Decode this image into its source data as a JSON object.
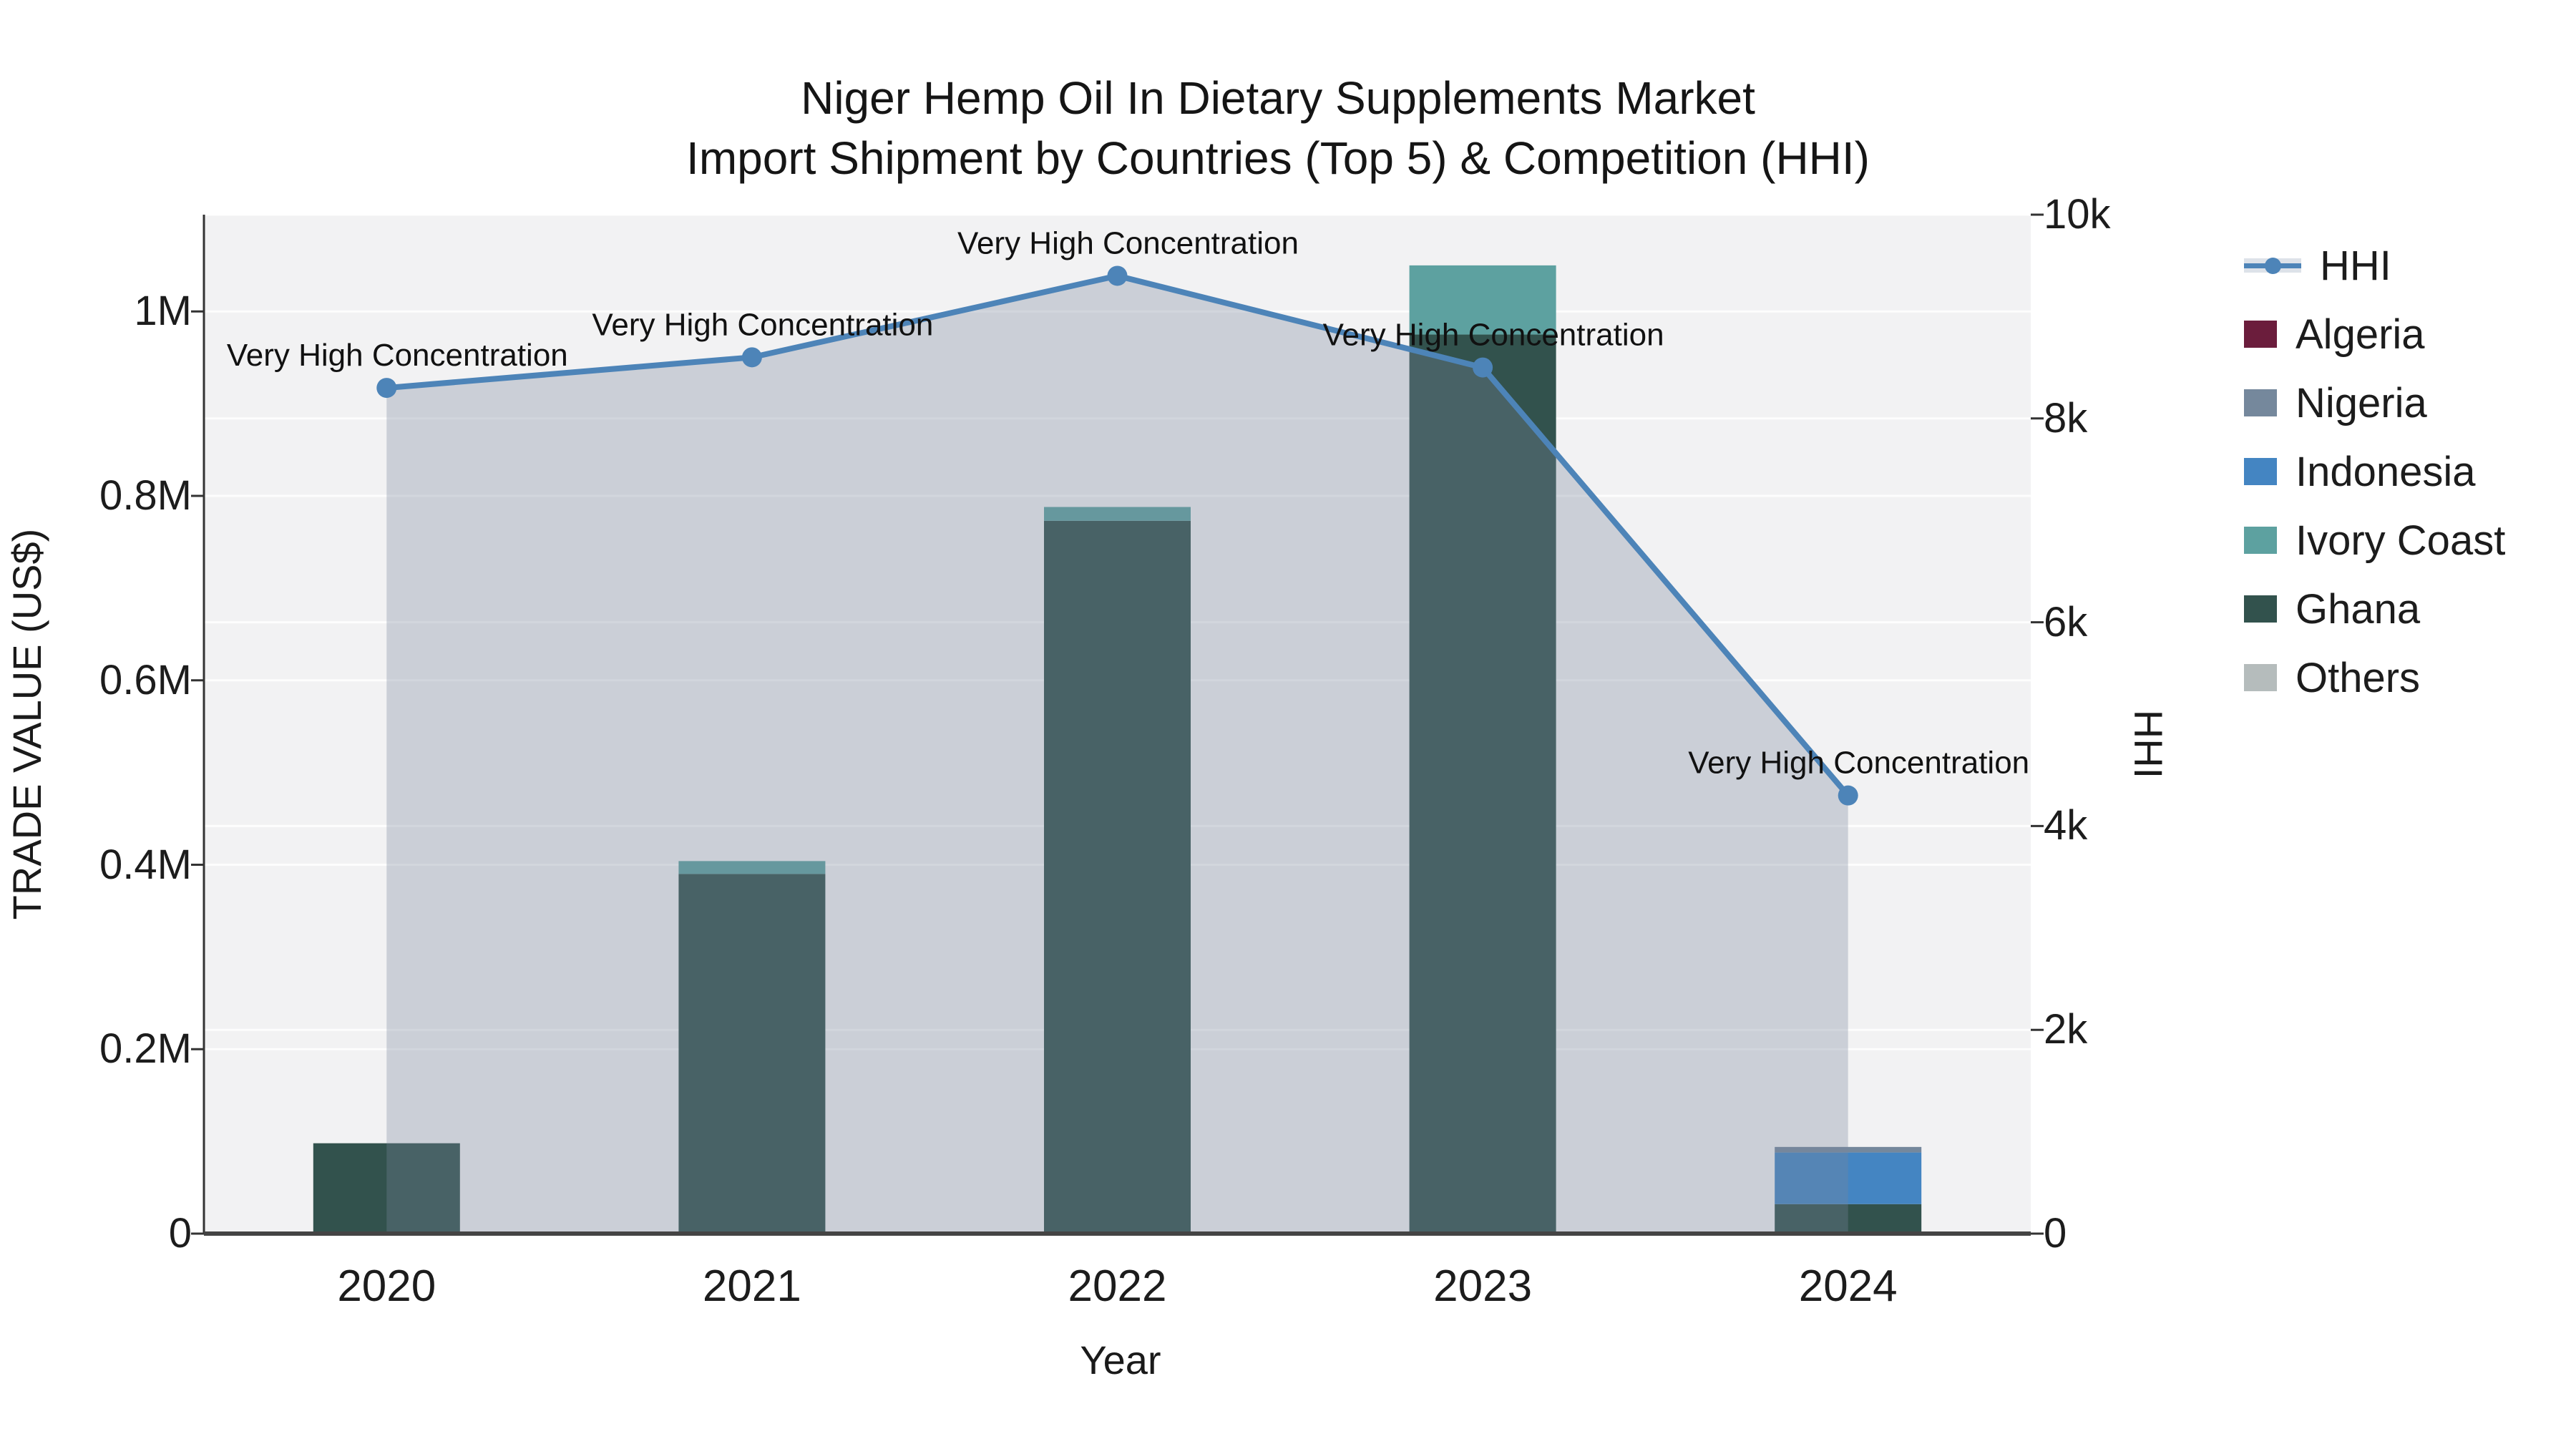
{
  "title": {
    "line1": "Niger Hemp Oil In Dietary Supplements Market",
    "line2": "Import Shipment by Countries (Top 5) & Competition (HHI)"
  },
  "axes": {
    "x": {
      "title": "Year",
      "categories": [
        "2020",
        "2021",
        "2022",
        "2023",
        "2024"
      ]
    },
    "y_left": {
      "title": "TRADE VALUE (US$)",
      "ticks": [
        {
          "label": "0",
          "value": 0
        },
        {
          "label": "0.2M",
          "value": 200000
        },
        {
          "label": "0.4M",
          "value": 400000
        },
        {
          "label": "0.6M",
          "value": 600000
        },
        {
          "label": "0.8M",
          "value": 800000
        },
        {
          "label": "1M",
          "value": 1000000
        }
      ],
      "range": [
        0,
        1105000
      ]
    },
    "y_right": {
      "title": "HHI",
      "ticks": [
        {
          "label": "0",
          "value": 0
        },
        {
          "label": "2k",
          "value": 2000
        },
        {
          "label": "4k",
          "value": 4000
        },
        {
          "label": "6k",
          "value": 6000
        },
        {
          "label": "8k",
          "value": 8000
        },
        {
          "label": "10k",
          "value": 10000
        }
      ],
      "range": [
        0,
        10000
      ]
    }
  },
  "colors": {
    "plot_background": "#f2f2f3",
    "gridline": "#ffffff",
    "axis_line": "#444444",
    "hhi_line": "#4d84b8",
    "hhi_area_fill": "rgba(120,135,155,0.32)"
  },
  "legend": {
    "items": [
      {
        "label": "HHI",
        "type": "line",
        "color": "#4d84b8"
      },
      {
        "label": "Algeria",
        "type": "swatch",
        "color": "#6b1d3c"
      },
      {
        "label": "Nigeria",
        "type": "swatch",
        "color": "#75889c"
      },
      {
        "label": "Indonesia",
        "type": "swatch",
        "color": "#4485c2"
      },
      {
        "label": "Ivory Coast",
        "type": "swatch",
        "color": "#5da1a0"
      },
      {
        "label": "Ghana",
        "type": "swatch",
        "color": "#32524d"
      },
      {
        "label": "Others",
        "type": "swatch",
        "color": "#b5bcbc"
      }
    ]
  },
  "chart_data": [
    {
      "type": "bar",
      "stacked": true,
      "y_axis": "left",
      "categories": [
        "2020",
        "2021",
        "2022",
        "2023",
        "2024"
      ],
      "stack_order_bottom_to_top": [
        "Ghana",
        "Ivory Coast",
        "Indonesia",
        "Nigeria",
        "Algeria",
        "Others"
      ],
      "series": [
        {
          "name": "Algeria",
          "color": "#6b1d3c",
          "values": [
            0,
            0,
            0,
            0,
            0
          ]
        },
        {
          "name": "Nigeria",
          "color": "#75889c",
          "values": [
            0,
            0,
            0,
            0,
            6000
          ]
        },
        {
          "name": "Indonesia",
          "color": "#4485c2",
          "values": [
            0,
            0,
            0,
            0,
            56000
          ]
        },
        {
          "name": "Ivory Coast",
          "color": "#5da1a0",
          "values": [
            0,
            14000,
            15000,
            75000,
            0
          ]
        },
        {
          "name": "Ghana",
          "color": "#32524d",
          "values": [
            98000,
            390000,
            773000,
            975000,
            32000
          ]
        },
        {
          "name": "Others",
          "color": "#b5bcbc",
          "values": [
            0,
            0,
            0,
            0,
            0
          ]
        }
      ]
    },
    {
      "type": "line",
      "name": "HHI",
      "y_axis": "right",
      "color": "#4d84b8",
      "fill": "tozero",
      "fill_color": "rgba(120,135,155,0.32)",
      "x": [
        "2020",
        "2021",
        "2022",
        "2023",
        "2024"
      ],
      "values": [
        8300,
        8600,
        9400,
        8500,
        4300
      ],
      "point_annotations": [
        "Very High Concentration",
        "Very High Concentration",
        "Very High Concentration",
        "Very High Concentration",
        "Very High Concentration"
      ]
    }
  ]
}
